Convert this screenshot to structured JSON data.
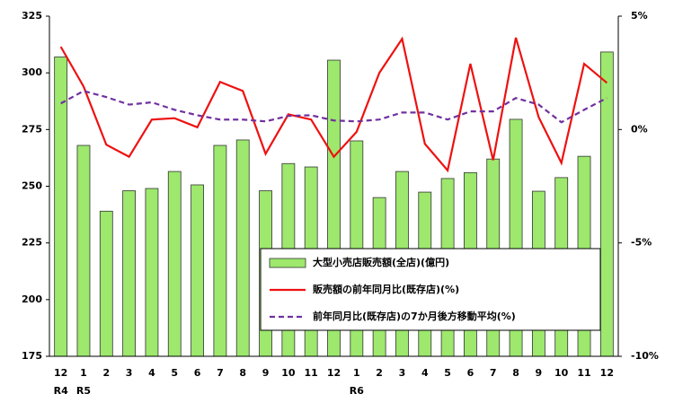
{
  "chart_data": {
    "type": "bar-line",
    "categories": [
      "12",
      "1",
      "2",
      "3",
      "4",
      "5",
      "6",
      "7",
      "8",
      "9",
      "10",
      "11",
      "12",
      "1",
      "2",
      "3",
      "4",
      "5",
      "6",
      "7",
      "8",
      "9",
      "10",
      "11",
      "12"
    ],
    "year_labels": [
      "R4",
      "R5",
      null,
      null,
      null,
      null,
      null,
      null,
      null,
      null,
      null,
      null,
      null,
      "R6",
      null,
      null,
      null,
      null,
      null,
      null,
      null,
      null,
      null,
      null,
      null
    ],
    "ylim": [
      175,
      325
    ],
    "yticks": [
      175,
      200,
      225,
      250,
      275,
      300,
      325
    ],
    "y2lim": [
      -10,
      5
    ],
    "y2ticks": [
      {
        "value": -10,
        "label": "-10%"
      },
      {
        "value": -5,
        "label": "-5%"
      },
      {
        "value": 0,
        "label": "0%"
      },
      {
        "value": 5,
        "label": "5%"
      }
    ],
    "series": [
      {
        "name": "大型小売店販売額(全店)(億円)",
        "type": "bar",
        "color": "#9de86d",
        "values": [
          307,
          268,
          239,
          248,
          249,
          256.5,
          250.6,
          268,
          270.4,
          248,
          260,
          258.5,
          305.6,
          270,
          245,
          256.5,
          247.4,
          253.4,
          256,
          262,
          279.5,
          247.8,
          253.8,
          263.2,
          309.2
        ]
      },
      {
        "name": "販売額の前年同月比(既存店)(%)",
        "type": "line",
        "axis": "y2",
        "color": "#ee1111",
        "values": [
          3.65,
          1.9,
          -0.67,
          -1.2,
          0.44,
          0.5,
          0.1,
          2.1,
          1.7,
          -1.07,
          0.67,
          0.44,
          -1.2,
          -0.1,
          2.5,
          4.0,
          -0.63,
          -1.8,
          2.9,
          -1.35,
          4.05,
          0.55,
          -1.47,
          2.9,
          2.06
        ]
      },
      {
        "name": "前年同月比(既存店)の7か月後方移動平均(%)",
        "type": "line",
        "dashed": true,
        "axis": "y2",
        "color": "#7030a0",
        "values": [
          1.15,
          1.7,
          1.43,
          1.1,
          1.2,
          0.87,
          0.63,
          0.44,
          0.44,
          0.36,
          0.6,
          0.63,
          0.4,
          0.36,
          0.44,
          0.75,
          0.75,
          0.44,
          0.8,
          0.8,
          1.39,
          1.1,
          0.32,
          0.87,
          1.39
        ]
      }
    ]
  }
}
